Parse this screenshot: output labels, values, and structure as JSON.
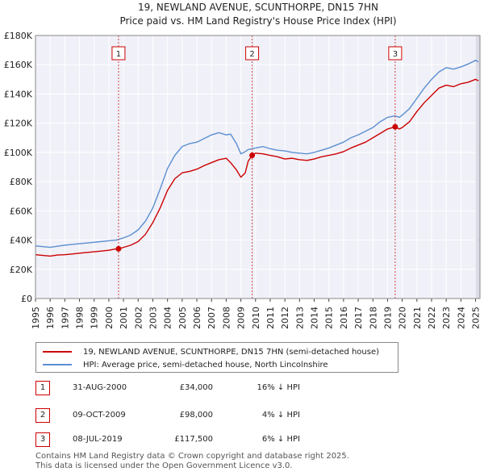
{
  "chart_data": {
    "type": "line",
    "title": "19, NEWLAND AVENUE, SCUNTHORPE, DN15 7HN",
    "subtitle": "Price paid vs. HM Land Registry's House Price Index (HPI)",
    "xlim": [
      1995.0,
      2025.3
    ],
    "ylim": [
      0,
      180000
    ],
    "ytick_values": [
      0,
      20000,
      40000,
      60000,
      80000,
      100000,
      120000,
      140000,
      160000,
      180000
    ],
    "ytick_labels": [
      "£0",
      "£20K",
      "£40K",
      "£60K",
      "£80K",
      "£100K",
      "£120K",
      "£140K",
      "£160K",
      "£180K"
    ],
    "xtick_values": [
      1995,
      1996,
      1997,
      1998,
      1999,
      2000,
      2001,
      2002,
      2003,
      2004,
      2005,
      2006,
      2007,
      2008,
      2009,
      2010,
      2011,
      2012,
      2013,
      2014,
      2015,
      2016,
      2017,
      2018,
      2019,
      2020,
      2021,
      2022,
      2023,
      2024,
      2025
    ],
    "xtick_labels": [
      "1995",
      "1996",
      "1997",
      "1998",
      "1999",
      "2000",
      "2001",
      "2002",
      "2003",
      "2004",
      "2005",
      "2006",
      "2007",
      "2008",
      "2009",
      "2010",
      "2011",
      "2012",
      "2013",
      "2014",
      "2015",
      "2016",
      "2017",
      "2018",
      "2019",
      "2020",
      "2021",
      "2022",
      "2023",
      "2024",
      "2025"
    ],
    "series": [
      {
        "name": "19, NEWLAND AVENUE, SCUNTHORPE, DN15 7HN (semi-detached house)",
        "color": "#cc0000",
        "x": [
          1995.0,
          1995.5,
          1996.0,
          1996.5,
          1997.0,
          1997.5,
          1998.0,
          1998.5,
          1999.0,
          1999.5,
          2000.0,
          2000.4,
          2000.66,
          2001.0,
          2001.5,
          2002.0,
          2002.5,
          2003.0,
          2003.5,
          2004.0,
          2004.5,
          2005.0,
          2005.5,
          2006.0,
          2006.5,
          2007.0,
          2007.5,
          2008.0,
          2008.3,
          2008.7,
          2009.0,
          2009.3,
          2009.5,
          2009.77,
          2010.0,
          2010.5,
          2011.0,
          2011.5,
          2012.0,
          2012.5,
          2013.0,
          2013.5,
          2014.0,
          2014.5,
          2015.0,
          2015.5,
          2016.0,
          2016.5,
          2017.0,
          2017.5,
          2018.0,
          2018.5,
          2019.0,
          2019.52,
          2019.8,
          2020.0,
          2020.5,
          2021.0,
          2021.5,
          2022.0,
          2022.5,
          2023.0,
          2023.5,
          2024.0,
          2024.5,
          2025.0,
          2025.2
        ],
        "y": [
          30000,
          29500,
          29000,
          29800,
          30000,
          30500,
          31000,
          31500,
          32000,
          32500,
          33000,
          33800,
          34000,
          35000,
          36500,
          39000,
          44000,
          52000,
          62000,
          74000,
          82000,
          86000,
          87000,
          88500,
          91000,
          93000,
          95000,
          96000,
          93000,
          88000,
          83000,
          86000,
          94000,
          98000,
          99500,
          99000,
          98000,
          97000,
          95500,
          96000,
          95000,
          94500,
          95500,
          97000,
          98000,
          99000,
          100500,
          103000,
          105000,
          107000,
          110000,
          113000,
          116000,
          117500,
          116000,
          117000,
          121000,
          128000,
          134000,
          139000,
          144000,
          146000,
          145000,
          147000,
          148000,
          150000,
          149000
        ]
      },
      {
        "name": "HPI: Average price, semi-detached house, North Lincolnshire",
        "color": "#5b8fd0",
        "x": [
          1995.0,
          1995.5,
          1996.0,
          1996.5,
          1997.0,
          1997.5,
          1998.0,
          1998.5,
          1999.0,
          1999.5,
          2000.0,
          2000.5,
          2001.0,
          2001.5,
          2002.0,
          2002.5,
          2003.0,
          2003.5,
          2004.0,
          2004.5,
          2005.0,
          2005.5,
          2006.0,
          2006.5,
          2007.0,
          2007.5,
          2008.0,
          2008.3,
          2008.7,
          2009.0,
          2009.3,
          2009.5,
          2009.77,
          2010.0,
          2010.5,
          2011.0,
          2011.5,
          2012.0,
          2012.5,
          2013.0,
          2013.5,
          2014.0,
          2014.5,
          2015.0,
          2015.5,
          2016.0,
          2016.5,
          2017.0,
          2017.5,
          2018.0,
          2018.5,
          2019.0,
          2019.52,
          2019.8,
          2020.0,
          2020.5,
          2021.0,
          2021.5,
          2022.0,
          2022.5,
          2023.0,
          2023.5,
          2024.0,
          2024.5,
          2025.0,
          2025.2
        ],
        "y": [
          36000,
          35500,
          35000,
          35800,
          36500,
          37000,
          37500,
          38000,
          38500,
          39000,
          39500,
          40000,
          41500,
          43500,
          47000,
          53000,
          62000,
          75000,
          89000,
          98000,
          104000,
          106000,
          107000,
          109500,
          112000,
          113500,
          112000,
          112500,
          106000,
          99000,
          100500,
          102000,
          102500,
          103000,
          104000,
          102500,
          101500,
          101000,
          100000,
          99500,
          99000,
          100000,
          101500,
          103000,
          105000,
          107000,
          110000,
          112000,
          114500,
          117000,
          121000,
          124000,
          125000,
          124000,
          125500,
          130000,
          137000,
          144000,
          150000,
          155000,
          158000,
          157000,
          158500,
          160500,
          163000,
          162000
        ]
      }
    ],
    "markers": [
      {
        "label": "1",
        "x": 2000.66,
        "y": 34000
      },
      {
        "label": "2",
        "x": 2009.77,
        "y": 98000
      },
      {
        "label": "3",
        "x": 2019.52,
        "y": 117500
      }
    ]
  },
  "legend": {
    "property_label": "19, NEWLAND AVENUE, SCUNTHORPE, DN15 7HN (semi-detached house)",
    "hpi_label": "HPI: Average price, semi-detached house, North Lincolnshire",
    "property_color": "#cc0000",
    "hpi_color": "#5b8fd0"
  },
  "sales": [
    {
      "num": "1",
      "date": "31-AUG-2000",
      "price": "£34,000",
      "hpi": "16% ↓ HPI"
    },
    {
      "num": "2",
      "date": "09-OCT-2009",
      "price": "£98,000",
      "hpi": "4% ↓ HPI"
    },
    {
      "num": "3",
      "date": "08-JUL-2019",
      "price": "£117,500",
      "hpi": "6% ↓ HPI"
    }
  ],
  "footer": {
    "line1": "Contains HM Land Registry data © Crown copyright and database right 2025.",
    "line2": "This data is licensed under the Open Government Licence v3.0."
  }
}
